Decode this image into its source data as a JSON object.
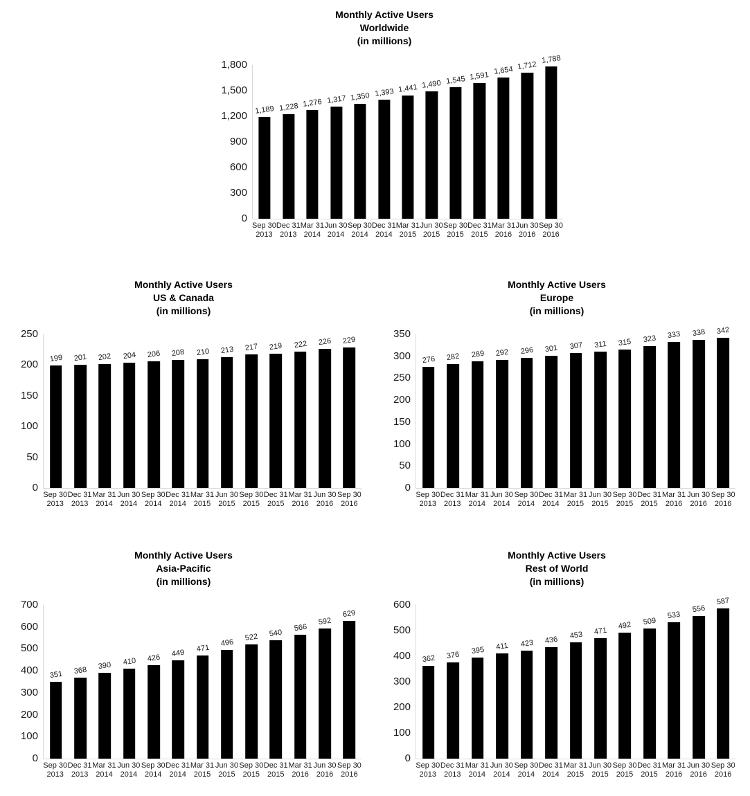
{
  "colors": {
    "bar": "#000000",
    "axis_line": "#d9d9d9",
    "text": "#1a1a1a"
  },
  "chart_data": [
    {
      "id": "worldwide",
      "type": "bar",
      "title_lines": [
        "Monthly Active Users",
        "Worldwide",
        "(in millions)"
      ],
      "ylabel": "",
      "xlabel": "",
      "ylim": [
        0,
        1800
      ],
      "ytick_step": 300,
      "yticks": [
        "1,800",
        "1,500",
        "1,200",
        "900",
        "600",
        "300",
        "0"
      ],
      "grid": false,
      "legend": "none",
      "categories": [
        [
          "Sep 30",
          "2013"
        ],
        [
          "Dec 31",
          "2013"
        ],
        [
          "Mar 31",
          "2014"
        ],
        [
          "Jun 30",
          "2014"
        ],
        [
          "Sep 30",
          "2014"
        ],
        [
          "Dec 31",
          "2014"
        ],
        [
          "Mar 31",
          "2015"
        ],
        [
          "Jun 30",
          "2015"
        ],
        [
          "Sep 30",
          "2015"
        ],
        [
          "Dec 31",
          "2015"
        ],
        [
          "Mar 31",
          "2016"
        ],
        [
          "Jun 30",
          "2016"
        ],
        [
          "Sep 30",
          "2016"
        ]
      ],
      "values": [
        1189,
        1228,
        1276,
        1317,
        1350,
        1393,
        1441,
        1490,
        1545,
        1591,
        1654,
        1712,
        1788
      ],
      "labels": [
        "1,189",
        "1,228",
        "1,276",
        "1,317",
        "1,350",
        "1,393",
        "1,441",
        "1,490",
        "1,545",
        "1,591",
        "1,654",
        "1,712",
        "1,788"
      ]
    },
    {
      "id": "us-canada",
      "type": "bar",
      "title_lines": [
        "Monthly Active Users",
        "US & Canada",
        "(in millions)"
      ],
      "ylabel": "",
      "xlabel": "",
      "ylim": [
        0,
        250
      ],
      "ytick_step": 50,
      "yticks": [
        "250",
        "200",
        "150",
        "100",
        "50",
        "0"
      ],
      "grid": false,
      "legend": "none",
      "categories": [
        [
          "Sep 30",
          "2013"
        ],
        [
          "Dec 31",
          "2013"
        ],
        [
          "Mar 31",
          "2014"
        ],
        [
          "Jun 30",
          "2014"
        ],
        [
          "Sep 30",
          "2014"
        ],
        [
          "Dec 31",
          "2014"
        ],
        [
          "Mar 31",
          "2015"
        ],
        [
          "Jun 30",
          "2015"
        ],
        [
          "Sep 30",
          "2015"
        ],
        [
          "Dec 31",
          "2015"
        ],
        [
          "Mar 31",
          "2016"
        ],
        [
          "Jun 30",
          "2016"
        ],
        [
          "Sep 30",
          "2016"
        ]
      ],
      "values": [
        199,
        201,
        202,
        204,
        206,
        208,
        210,
        213,
        217,
        219,
        222,
        226,
        229
      ],
      "labels": [
        "199",
        "201",
        "202",
        "204",
        "206",
        "208",
        "210",
        "213",
        "217",
        "219",
        "222",
        "226",
        "229"
      ]
    },
    {
      "id": "europe",
      "type": "bar",
      "title_lines": [
        "Monthly Active Users",
        "Europe",
        "(in millions)"
      ],
      "ylabel": "",
      "xlabel": "",
      "ylim": [
        0,
        350
      ],
      "ytick_step": 50,
      "yticks": [
        "350",
        "300",
        "250",
        "200",
        "150",
        "100",
        "50",
        "0"
      ],
      "grid": false,
      "legend": "none",
      "categories": [
        [
          "Sep 30",
          "2013"
        ],
        [
          "Dec 31",
          "2013"
        ],
        [
          "Mar 31",
          "2014"
        ],
        [
          "Jun 30",
          "2014"
        ],
        [
          "Sep 30",
          "2014"
        ],
        [
          "Dec 31",
          "2014"
        ],
        [
          "Mar 31",
          "2015"
        ],
        [
          "Jun 30",
          "2015"
        ],
        [
          "Sep 30",
          "2015"
        ],
        [
          "Dec 31",
          "2015"
        ],
        [
          "Mar 31",
          "2016"
        ],
        [
          "Jun 30",
          "2016"
        ],
        [
          "Sep 30",
          "2016"
        ]
      ],
      "values": [
        276,
        282,
        289,
        292,
        296,
        301,
        307,
        311,
        315,
        323,
        333,
        338,
        342
      ],
      "labels": [
        "276",
        "282",
        "289",
        "292",
        "296",
        "301",
        "307",
        "311",
        "315",
        "323",
        "333",
        "338",
        "342"
      ]
    },
    {
      "id": "asia-pacific",
      "type": "bar",
      "title_lines": [
        "Monthly Active Users",
        "Asia-Pacific",
        "(in millions)"
      ],
      "ylabel": "",
      "xlabel": "",
      "ylim": [
        0,
        700
      ],
      "ytick_step": 100,
      "yticks": [
        "700",
        "600",
        "500",
        "400",
        "300",
        "200",
        "100",
        "0"
      ],
      "grid": false,
      "legend": "none",
      "categories": [
        [
          "Sep 30",
          "2013"
        ],
        [
          "Dec 31",
          "2013"
        ],
        [
          "Mar 31",
          "2014"
        ],
        [
          "Jun 30",
          "2014"
        ],
        [
          "Sep 30",
          "2014"
        ],
        [
          "Dec 31",
          "2014"
        ],
        [
          "Mar 31",
          "2015"
        ],
        [
          "Jun 30",
          "2015"
        ],
        [
          "Sep 30",
          "2015"
        ],
        [
          "Dec 31",
          "2015"
        ],
        [
          "Mar 31",
          "2016"
        ],
        [
          "Jun 30",
          "2016"
        ],
        [
          "Sep 30",
          "2016"
        ]
      ],
      "values": [
        351,
        368,
        390,
        410,
        426,
        449,
        471,
        496,
        522,
        540,
        566,
        592,
        629
      ],
      "labels": [
        "351",
        "368",
        "390",
        "410",
        "426",
        "449",
        "471",
        "496",
        "522",
        "540",
        "566",
        "592",
        "629"
      ]
    },
    {
      "id": "rest-of-world",
      "type": "bar",
      "title_lines": [
        "Monthly Active Users",
        "Rest of World",
        "(in millions)"
      ],
      "ylabel": "",
      "xlabel": "",
      "ylim": [
        0,
        600
      ],
      "ytick_step": 100,
      "yticks": [
        "600",
        "500",
        "400",
        "300",
        "200",
        "100",
        "0"
      ],
      "grid": false,
      "legend": "none",
      "categories": [
        [
          "Sep 30",
          "2013"
        ],
        [
          "Dec 31",
          "2013"
        ],
        [
          "Mar 31",
          "2014"
        ],
        [
          "Jun 30",
          "2014"
        ],
        [
          "Sep 30",
          "2014"
        ],
        [
          "Dec 31",
          "2014"
        ],
        [
          "Mar 31",
          "2015"
        ],
        [
          "Jun 30",
          "2015"
        ],
        [
          "Sep 30",
          "2015"
        ],
        [
          "Dec 31",
          "2015"
        ],
        [
          "Mar 31",
          "2016"
        ],
        [
          "Jun 30",
          "2016"
        ],
        [
          "Sep 30",
          "2016"
        ]
      ],
      "values": [
        362,
        376,
        395,
        411,
        423,
        436,
        453,
        471,
        492,
        509,
        533,
        556,
        587
      ],
      "labels": [
        "362",
        "376",
        "395",
        "411",
        "423",
        "436",
        "453",
        "471",
        "492",
        "509",
        "533",
        "556",
        "587"
      ]
    }
  ]
}
